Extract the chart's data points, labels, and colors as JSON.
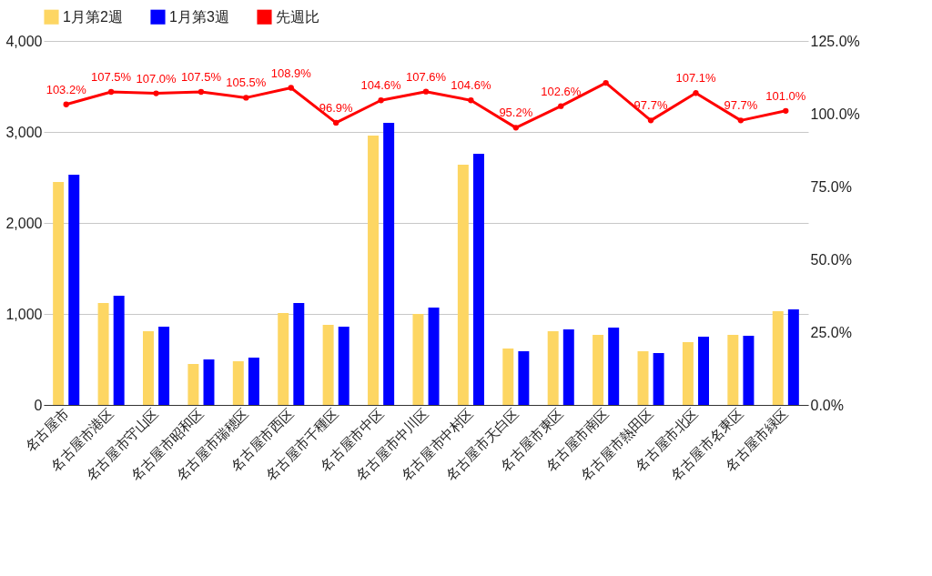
{
  "chart_data": {
    "type": "bar",
    "categories": [
      "名古屋市",
      "名古屋市港区",
      "名古屋市守山区",
      "名古屋市昭和区",
      "名古屋市瑞穂区",
      "名古屋市西区",
      "名古屋市千種区",
      "名古屋市中区",
      "名古屋市中川区",
      "名古屋市中村区",
      "名古屋市天白区",
      "名古屋市東区",
      "名古屋市南区",
      "名古屋市熱田区",
      "名古屋市北区",
      "名古屋市名東区",
      "名古屋市緑区"
    ],
    "series": [
      {
        "name": "1月第2週",
        "color": "#fdd663",
        "values": [
          2450,
          1120,
          810,
          450,
          480,
          1010,
          880,
          2960,
          1000,
          2640,
          620,
          810,
          770,
          590,
          690,
          770,
          1030
        ]
      },
      {
        "name": "1月第3週",
        "color": "#0000ff",
        "values": [
          2530,
          1200,
          860,
          500,
          520,
          1120,
          860,
          3100,
          1070,
          2760,
          590,
          830,
          850,
          570,
          750,
          760,
          1050
        ]
      },
      {
        "name": "先週比",
        "color": "#ff0000",
        "type": "line",
        "axis": "y2",
        "values": [
          103.2,
          107.5,
          107.0,
          107.5,
          105.5,
          108.9,
          96.9,
          104.6,
          107.6,
          104.6,
          95.2,
          102.6,
          110.6,
          97.7,
          107.1,
          97.7,
          101.0
        ],
        "value_labels": [
          "103.2%",
          "107.5%",
          "107.0%",
          "107.5%",
          "105.5%",
          "108.9%",
          "96.9%",
          "104.6%",
          "107.6%",
          "104.6%",
          "95.2%",
          "102.6%",
          null,
          "97.7%",
          "107.1%",
          "97.7%",
          "101.0%"
        ]
      }
    ],
    "ylim": [
      0,
      4000
    ],
    "yticks": [
      {
        "value": 0,
        "label": "0"
      },
      {
        "value": 1000,
        "label": "1,000"
      },
      {
        "value": 2000,
        "label": "2,000"
      },
      {
        "value": 3000,
        "label": "3,000"
      },
      {
        "value": 4000,
        "label": "4,000"
      }
    ],
    "y2lim": [
      0,
      125
    ],
    "y2ticks": [
      {
        "value": 0,
        "label": "0.0%"
      },
      {
        "value": 25,
        "label": "25.0%"
      },
      {
        "value": 50,
        "label": "50.0%"
      },
      {
        "value": 75,
        "label": "75.0%"
      },
      {
        "value": 100,
        "label": "100.0%"
      },
      {
        "value": 125,
        "label": "125.0%"
      }
    ],
    "grid": "y",
    "legend": "top",
    "marker": "circle",
    "line_style": "solid"
  }
}
